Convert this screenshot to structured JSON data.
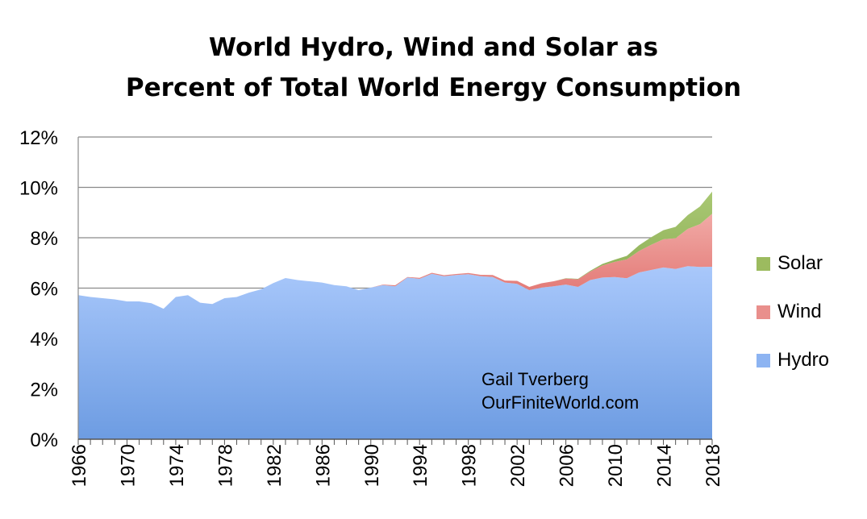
{
  "chart_data": {
    "type": "area",
    "stacked": true,
    "title": "World Hydro, Wind and Solar as",
    "subtitle": "Percent of Total World Energy Consumption",
    "xlabel": "",
    "ylabel": "",
    "x": [
      1966,
      1967,
      1968,
      1969,
      1970,
      1971,
      1972,
      1973,
      1974,
      1975,
      1976,
      1977,
      1978,
      1979,
      1980,
      1981,
      1982,
      1983,
      1984,
      1985,
      1986,
      1987,
      1988,
      1989,
      1990,
      1991,
      1992,
      1993,
      1994,
      1995,
      1996,
      1997,
      1998,
      1999,
      2000,
      2001,
      2002,
      2003,
      2004,
      2005,
      2006,
      2007,
      2008,
      2009,
      2010,
      2011,
      2012,
      2013,
      2014,
      2015,
      2016,
      2017,
      2018
    ],
    "xticks": [
      "1966",
      "1970",
      "1974",
      "1978",
      "1982",
      "1986",
      "1990",
      "1994",
      "1998",
      "2002",
      "2006",
      "2010",
      "2014",
      "2018"
    ],
    "ylim": [
      0,
      12
    ],
    "yticks": [
      "0%",
      "2%",
      "4%",
      "6%",
      "8%",
      "10%",
      "12%"
    ],
    "grid": true,
    "legend_position": "right",
    "series": [
      {
        "name": "Hydro",
        "color": "#8db4f2",
        "values": [
          5.72,
          5.65,
          5.6,
          5.55,
          5.47,
          5.47,
          5.4,
          5.18,
          5.65,
          5.72,
          5.42,
          5.37,
          5.6,
          5.65,
          5.82,
          5.95,
          6.2,
          6.4,
          6.32,
          6.27,
          6.22,
          6.12,
          6.07,
          5.92,
          6.02,
          6.12,
          6.07,
          6.42,
          6.37,
          6.57,
          6.47,
          6.52,
          6.55,
          6.47,
          6.44,
          6.22,
          6.17,
          5.92,
          6.02,
          6.07,
          6.14,
          6.05,
          6.32,
          6.42,
          6.44,
          6.39,
          6.62,
          6.72,
          6.82,
          6.76,
          6.87,
          6.84,
          6.85
        ]
      },
      {
        "name": "Wind",
        "color": "#e98f8c",
        "values": [
          0,
          0,
          0,
          0,
          0,
          0,
          0,
          0,
          0,
          0,
          0,
          0,
          0,
          0,
          0,
          0,
          0,
          0,
          0,
          0,
          0,
          0,
          0,
          0,
          0,
          0.02,
          0.04,
          0.02,
          0.04,
          0.04,
          0.04,
          0.04,
          0.05,
          0.06,
          0.08,
          0.08,
          0.12,
          0.13,
          0.17,
          0.2,
          0.24,
          0.3,
          0.34,
          0.48,
          0.6,
          0.75,
          0.85,
          1.0,
          1.12,
          1.22,
          1.48,
          1.7,
          2.1
        ]
      },
      {
        "name": "Solar",
        "color": "#9cbb5f",
        "values": [
          0,
          0,
          0,
          0,
          0,
          0,
          0,
          0,
          0,
          0,
          0,
          0,
          0,
          0,
          0,
          0,
          0,
          0,
          0,
          0,
          0,
          0,
          0,
          0,
          0,
          0,
          0,
          0,
          0,
          0,
          0,
          0,
          0,
          0,
          0,
          0,
          0,
          0,
          0,
          0,
          0.01,
          0.02,
          0.03,
          0.06,
          0.09,
          0.14,
          0.23,
          0.3,
          0.36,
          0.45,
          0.55,
          0.7,
          0.88
        ]
      }
    ],
    "annotations": [
      "Gail Tverberg",
      "OurFiniteWorld.com"
    ]
  }
}
